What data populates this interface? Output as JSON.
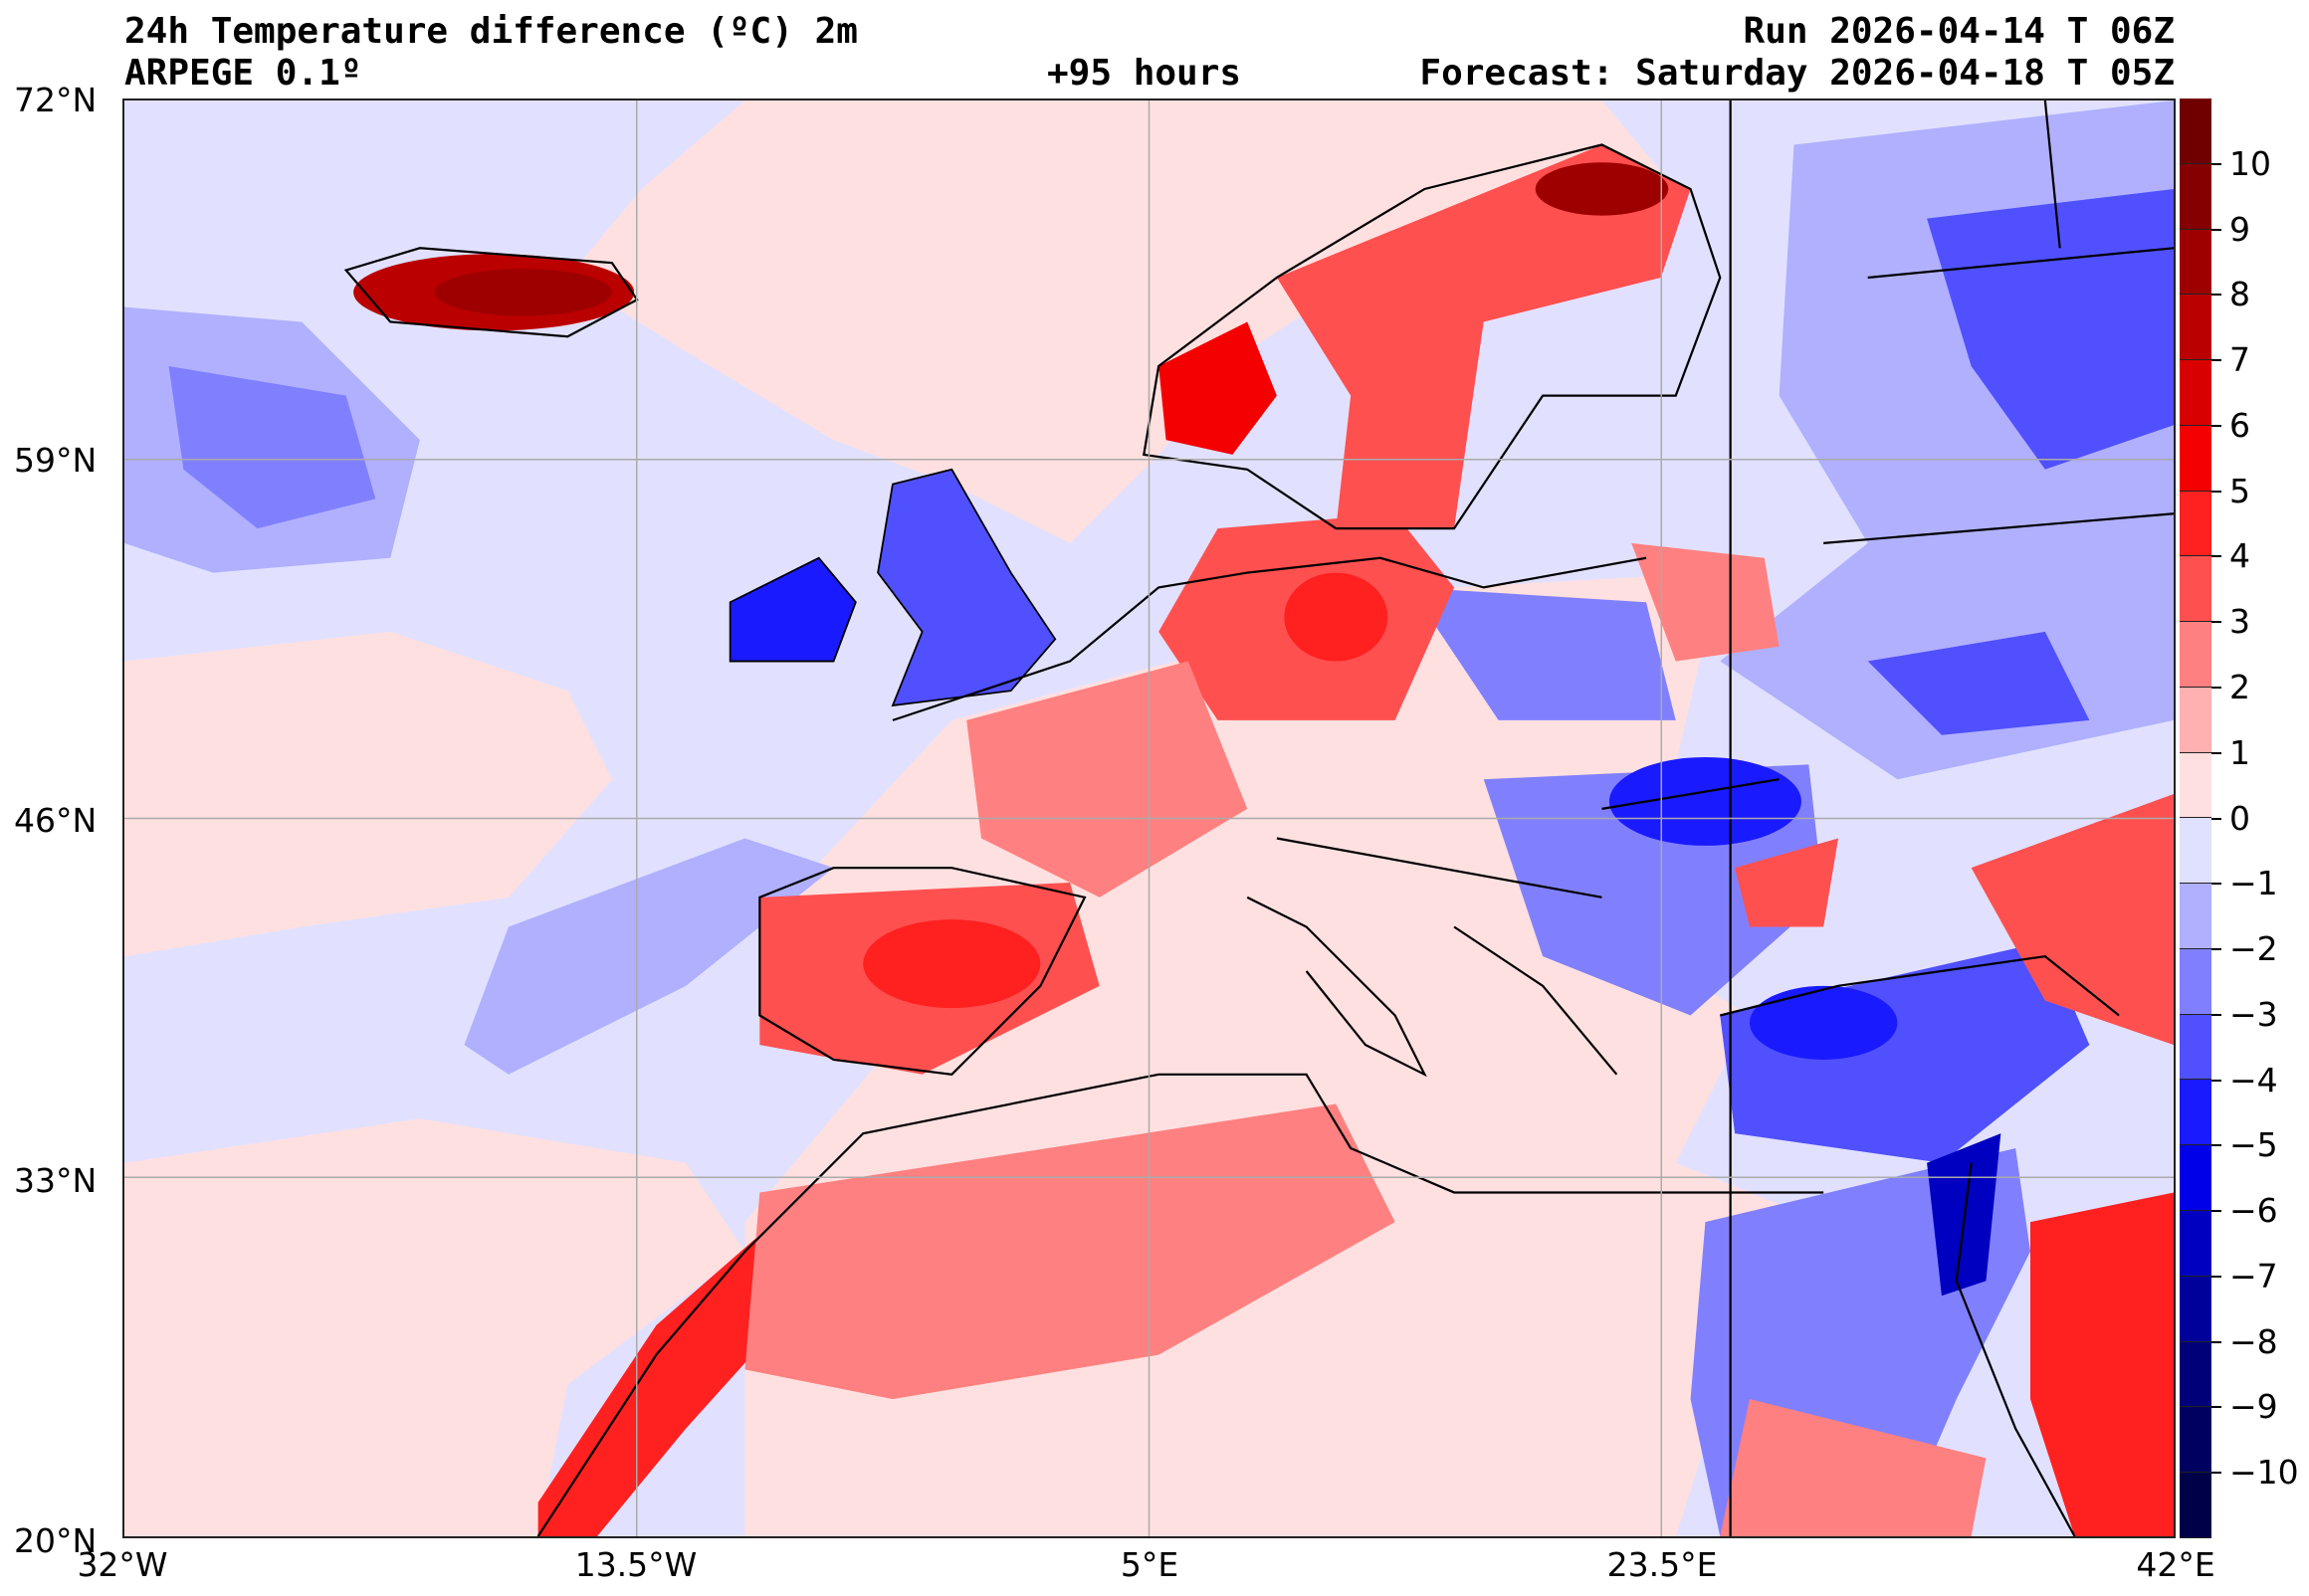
{
  "header": {
    "title": "24h Temperature difference (ºC) 2m",
    "model": "ARPEGE 0.1º",
    "lead": "+95 hours",
    "run": "Run 2026-04-14 T 06Z",
    "forecast": "Forecast: Saturday 2026-04-18 T 05Z"
  },
  "axes": {
    "lat_labels": [
      "72°N",
      "59°N",
      "46°N",
      "33°N",
      "20°N"
    ],
    "lon_labels": [
      "32°W",
      "13.5°W",
      "5°E",
      "23.5°E",
      "42°E"
    ]
  },
  "colorbar": {
    "labels": [
      "10",
      "9",
      "8",
      "7",
      "6",
      "5",
      "4",
      "3",
      "2",
      "1",
      "0",
      "−1",
      "−2",
      "−3",
      "−4",
      "−5",
      "−6",
      "−7",
      "−8",
      "−9",
      "−10"
    ],
    "colors": [
      "#700000",
      "#850000",
      "#9e0000",
      "#bb0000",
      "#d80000",
      "#f50000",
      "#ff2020",
      "#ff5050",
      "#ff8080",
      "#ffb0b0",
      "#ffe0e0",
      "#e0e0ff",
      "#b0b0ff",
      "#8080ff",
      "#5050ff",
      "#1a1aff",
      "#0000e8",
      "#0000c0",
      "#00009a",
      "#000078",
      "#000060",
      "#000048"
    ]
  }
}
